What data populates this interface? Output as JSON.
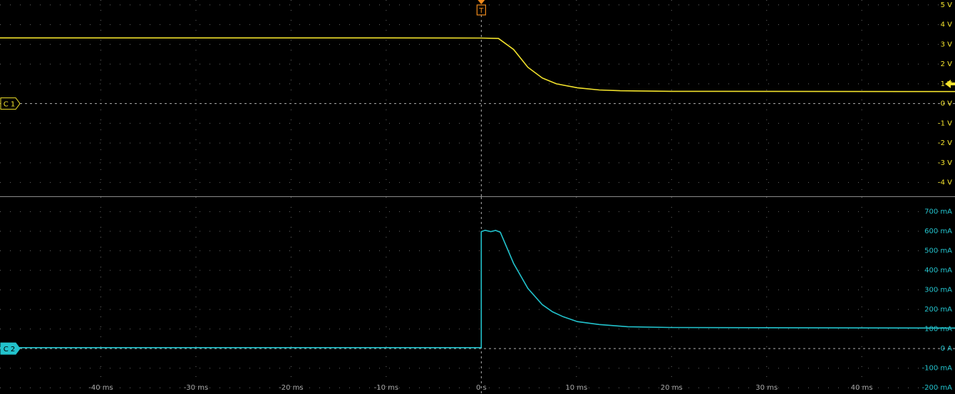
{
  "trigger_label": "T",
  "chart_data": [
    {
      "type": "line",
      "channel_label": "C 1",
      "x": [
        -50.6,
        -30,
        -10,
        0,
        1.8,
        3.4,
        4.9,
        6.4,
        7.9,
        10.1,
        12.4,
        14.6,
        20,
        49.8
      ],
      "series": [
        {
          "name": "C 1",
          "color": "#f2e22c",
          "values": [
            3.33,
            3.33,
            3.33,
            3.32,
            3.3,
            2.74,
            1.84,
            1.3,
            1.0,
            0.8,
            0.69,
            0.65,
            0.62,
            0.61
          ]
        }
      ],
      "xlim": [
        -50.6,
        49.8
      ],
      "xticks": [
        -40,
        -30,
        -20,
        -10,
        0,
        10,
        20,
        30,
        40
      ],
      "ylim": [
        -4.7,
        5.25
      ],
      "yticks": [
        {
          "value": 5,
          "label": "5 V"
        },
        {
          "value": 4,
          "label": "4 V"
        },
        {
          "value": 3,
          "label": "3 V"
        },
        {
          "value": 2,
          "label": "2 V"
        },
        {
          "value": 1,
          "label": "1 V"
        },
        {
          "value": 0,
          "label": "0 V"
        },
        {
          "value": -1,
          "label": "-1 V"
        },
        {
          "value": -2,
          "label": "-2 V"
        },
        {
          "value": -3,
          "label": "-3 V"
        },
        {
          "value": -4,
          "label": "-4 V"
        }
      ],
      "grid": true
    },
    {
      "type": "line",
      "channel_label": "C 2",
      "x": [
        -50.6,
        0,
        0,
        0.4,
        1,
        1.5,
        2,
        3.4,
        4.9,
        6.4,
        7.5,
        8.6,
        10.1,
        12.4,
        15.4,
        19.9,
        49.8
      ],
      "series": [
        {
          "name": "C 2",
          "color": "#22c2cc",
          "values": [
            5,
            5,
            598,
            605,
            598,
            604,
            595,
            435,
            308,
            225,
            188,
            163,
            138,
            123,
            112,
            108,
            105
          ]
        }
      ],
      "xlim": [
        -50.6,
        49.8
      ],
      "xticks": [
        {
          "value": -40,
          "label": "-40 ms"
        },
        {
          "value": -30,
          "label": "-30 ms"
        },
        {
          "value": -20,
          "label": "-20 ms"
        },
        {
          "value": -10,
          "label": "-10 ms"
        },
        {
          "value": 0,
          "label": "0 s"
        },
        {
          "value": 10,
          "label": "10 ms"
        },
        {
          "value": 20,
          "label": "20 ms"
        },
        {
          "value": 30,
          "label": "30 ms"
        },
        {
          "value": 40,
          "label": "40 ms"
        }
      ],
      "ylim": [
        -232,
        775
      ],
      "yticks": [
        {
          "value": 700,
          "label": "700 mA"
        },
        {
          "value": 600,
          "label": "600 mA"
        },
        {
          "value": 500,
          "label": "500 mA"
        },
        {
          "value": 400,
          "label": "400 mA"
        },
        {
          "value": 300,
          "label": "300 mA"
        },
        {
          "value": 200,
          "label": "200 mA"
        },
        {
          "value": 100,
          "label": "100 mA"
        },
        {
          "value": 0,
          "label": "0 A"
        },
        {
          "value": -100,
          "label": "-100 mA"
        },
        {
          "value": -200,
          "label": "-200 mA"
        }
      ],
      "grid": true
    }
  ]
}
